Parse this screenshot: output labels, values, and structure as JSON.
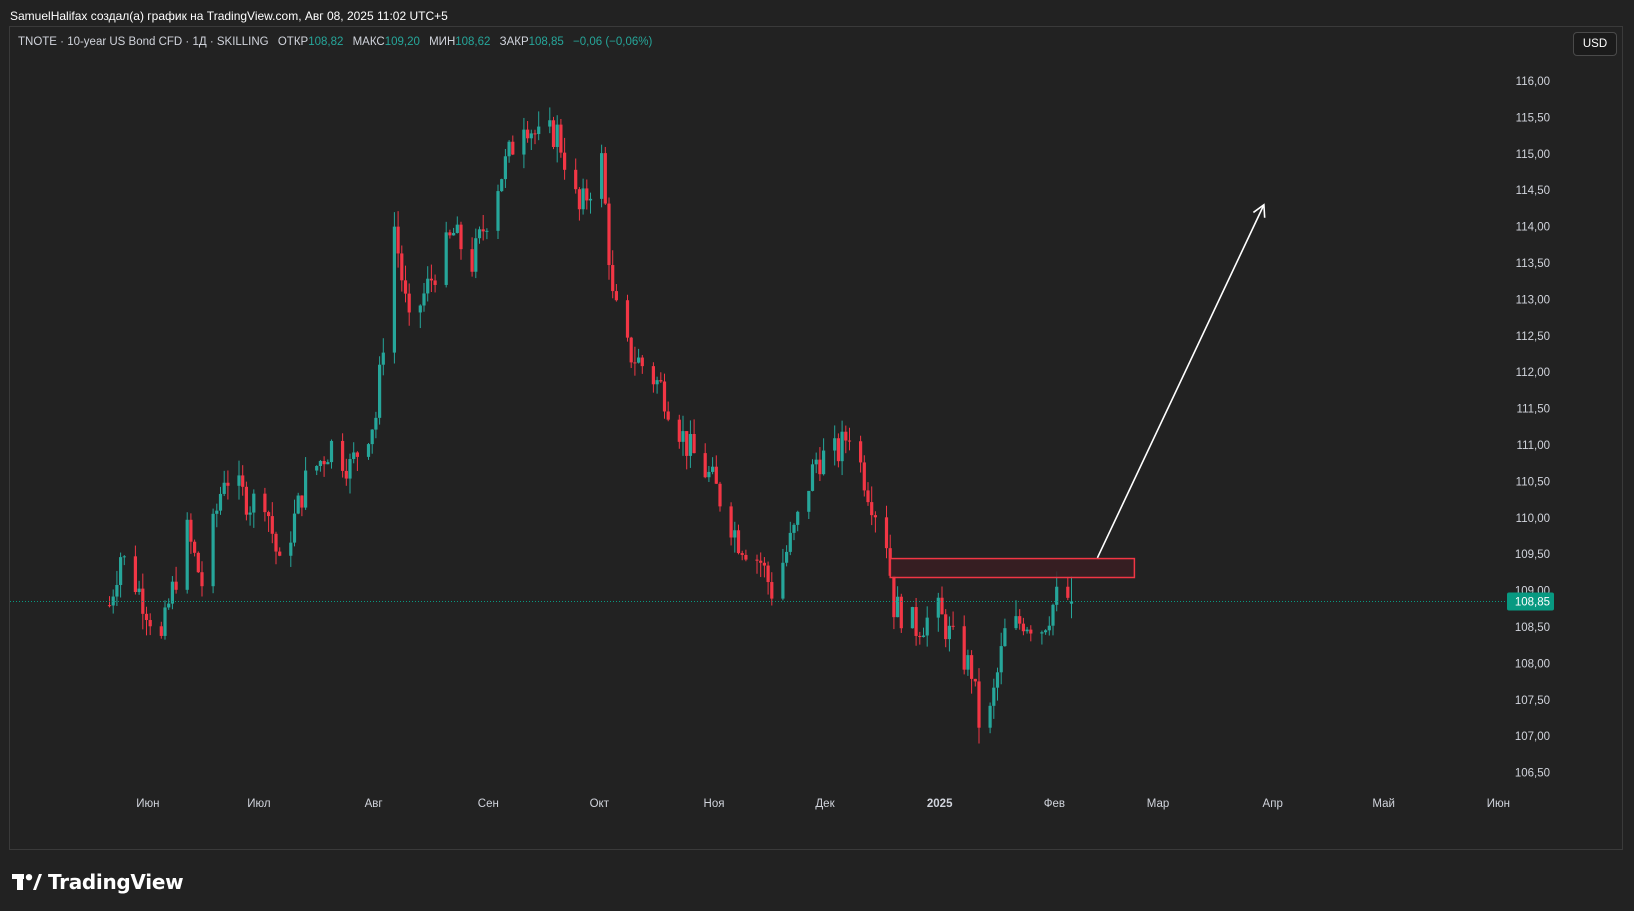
{
  "header": {
    "credit": "SamuelHalifax создал(а) график на TradingView.com, Авг 08, 2025 11:02 UTC+5"
  },
  "legend": {
    "symbol": "TNOTE · 10-year US Bond CFD · 1Д · SKILLING",
    "open_label": "ОТКР",
    "open": "108,82",
    "high_label": "МАКС",
    "high": "109,20",
    "low_label": "МИН",
    "low": "108,62",
    "close_label": "ЗАКР",
    "close": "108,85",
    "change": "−0,06 (−0,06%)"
  },
  "currency_button": "USD",
  "logo_text": "TradingView",
  "colors": {
    "background": "#222222",
    "up": "#26a69a",
    "down": "#f23645",
    "zone_border": "#f23645",
    "zone_fill": "#3a1d22",
    "arrow": "#ffffff",
    "last_price": "#089981",
    "axis_text": "#d1d4dc"
  },
  "chart_data": {
    "type": "candlestick",
    "title": "TNOTE · 10-year US Bond CFD · 1Д · SKILLING",
    "y_axis": {
      "ticks": [
        "106,50",
        "107,00",
        "107,50",
        "108,00",
        "108,50",
        "109,00",
        "109,50",
        "110,00",
        "110,50",
        "111,00",
        "111,50",
        "112,00",
        "112,50",
        "113,00",
        "113,50",
        "114,00",
        "114,50",
        "115,00",
        "115,50",
        "116,00"
      ],
      "ylim": [
        106.35,
        116.3
      ]
    },
    "x_axis": {
      "ticks": [
        "Июн",
        "Июл",
        "Авг",
        "Сен",
        "Окт",
        "Ноя",
        "Дек",
        "2025",
        "Фев",
        "Мар",
        "Апр",
        "Май",
        "Июн"
      ],
      "bold_tick": "2025"
    },
    "last_price": {
      "value": 108.85,
      "label": "108,85"
    },
    "series": [
      {
        "name": "TNOTE",
        "anchors": [
          [
            "2024-05-20",
            108.8
          ],
          [
            "2024-05-23",
            109.5
          ],
          [
            "2024-05-28",
            109.0
          ],
          [
            "2024-06-03",
            108.3
          ],
          [
            "2024-06-05",
            108.8
          ],
          [
            "2024-06-10",
            109.8
          ],
          [
            "2024-06-14",
            109.1
          ],
          [
            "2024-06-20",
            110.6
          ],
          [
            "2024-06-27",
            110.2
          ],
          [
            "2024-07-01",
            110.3
          ],
          [
            "2024-07-05",
            109.3
          ],
          [
            "2024-07-12",
            110.5
          ],
          [
            "2024-07-19",
            111.0
          ],
          [
            "2024-07-24",
            110.7
          ],
          [
            "2024-07-31",
            111.4
          ],
          [
            "2024-08-05",
            114.0
          ],
          [
            "2024-08-09",
            112.6
          ],
          [
            "2024-08-16",
            113.4
          ],
          [
            "2024-08-21",
            113.9
          ],
          [
            "2024-08-26",
            113.5
          ],
          [
            "2024-09-02",
            114.6
          ],
          [
            "2024-09-09",
            115.5
          ],
          [
            "2024-09-13",
            115.2
          ],
          [
            "2024-09-18",
            115.3
          ],
          [
            "2024-09-24",
            114.2
          ],
          [
            "2024-09-30",
            114.9
          ],
          [
            "2024-10-03",
            113.0
          ],
          [
            "2024-10-07",
            112.3
          ],
          [
            "2024-10-11",
            112.1
          ],
          [
            "2024-10-16",
            111.8
          ],
          [
            "2024-10-23",
            111.0
          ],
          [
            "2024-10-30",
            110.5
          ],
          [
            "2024-11-06",
            109.7
          ],
          [
            "2024-11-12",
            109.4
          ],
          [
            "2024-11-15",
            109.0
          ],
          [
            "2024-11-21",
            109.8
          ],
          [
            "2024-11-27",
            110.8
          ],
          [
            "2024-12-03",
            110.9
          ],
          [
            "2024-12-06",
            111.2
          ],
          [
            "2024-12-11",
            110.4
          ],
          [
            "2024-12-16",
            109.7
          ],
          [
            "2024-12-18",
            108.8
          ],
          [
            "2024-12-24",
            108.5
          ],
          [
            "2024-12-30",
            108.7
          ],
          [
            "2025-01-03",
            108.3
          ],
          [
            "2025-01-08",
            107.9
          ],
          [
            "2025-01-10",
            107.2
          ],
          [
            "2025-01-13",
            107.3
          ],
          [
            "2025-01-17",
            108.4
          ],
          [
            "2025-01-22",
            108.6
          ],
          [
            "2025-01-27",
            108.5
          ],
          [
            "2025-01-31",
            108.9
          ],
          [
            "2025-02-05",
            108.9
          ]
        ]
      }
    ],
    "annotations": [
      {
        "type": "rectangle",
        "date_from": "2024-12-17",
        "date_to": "2025-02-21",
        "price_from": 109.18,
        "price_to": 109.44
      },
      {
        "type": "arrow",
        "from_date": "2025-02-11",
        "from_price": 109.45,
        "to_date": "2025-03-28",
        "to_price": 114.3
      }
    ]
  }
}
